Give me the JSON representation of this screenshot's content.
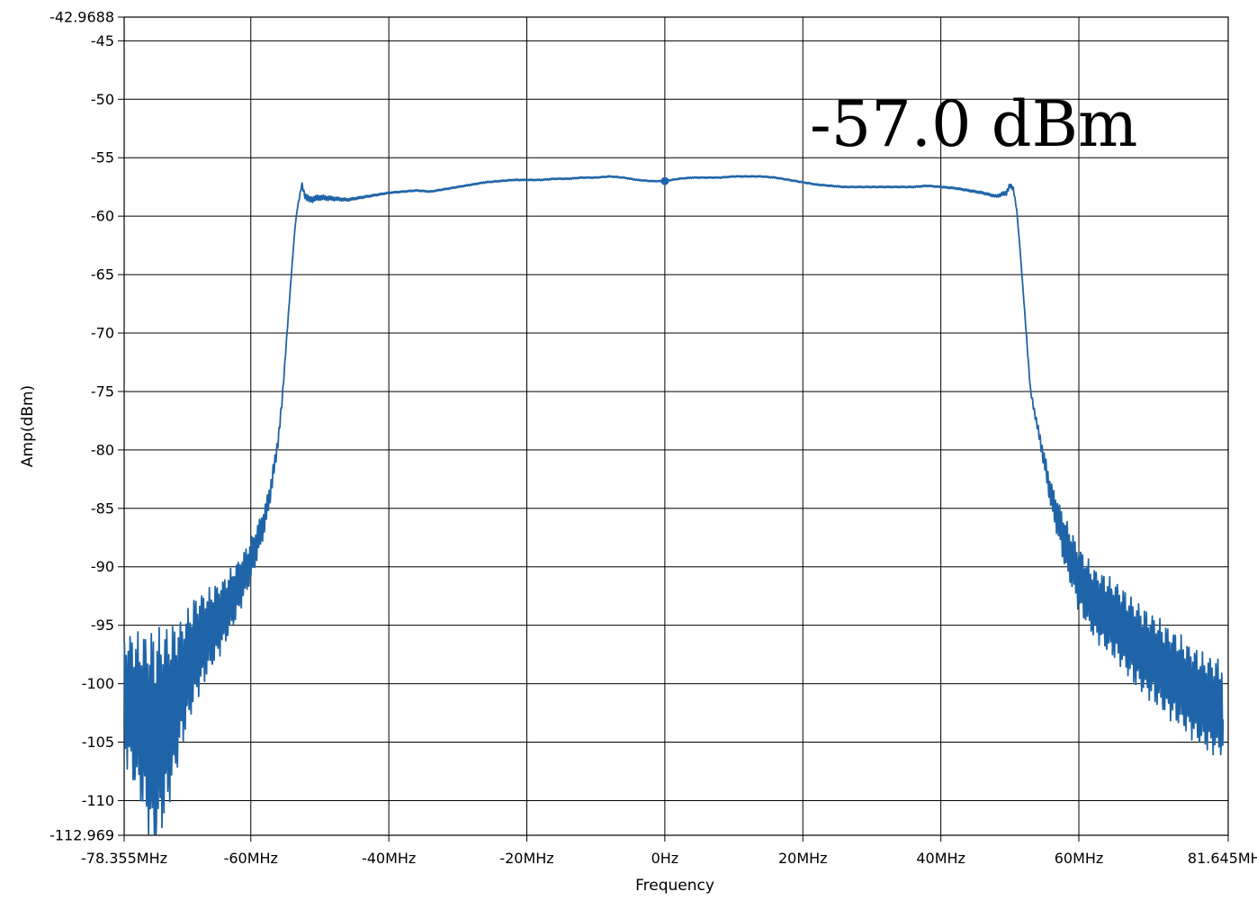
{
  "chart_data": {
    "type": "line",
    "xlabel": "Frequency",
    "ylabel": "Amp(dBm)",
    "x_unit": "MHz",
    "xlim": [
      -78.355,
      81.645
    ],
    "ylim": [
      -112.969,
      -42.9688
    ],
    "x_ticks": [
      {
        "value": -78.355,
        "label": "-78.355MHz"
      },
      {
        "value": -60,
        "label": "-60MHz"
      },
      {
        "value": -40,
        "label": "-40MHz"
      },
      {
        "value": -20,
        "label": "-20MHz"
      },
      {
        "value": 0,
        "label": "0Hz"
      },
      {
        "value": 20,
        "label": "20MHz"
      },
      {
        "value": 40,
        "label": "40MHz"
      },
      {
        "value": 60,
        "label": "60MHz"
      },
      {
        "value": 81.645,
        "label": "81.645MHz"
      }
    ],
    "y_ticks": [
      {
        "value": -42.9688,
        "label": "-42.9688"
      },
      {
        "value": -45,
        "label": "-45"
      },
      {
        "value": -50,
        "label": "-50"
      },
      {
        "value": -55,
        "label": "-55"
      },
      {
        "value": -60,
        "label": "-60"
      },
      {
        "value": -65,
        "label": "-65"
      },
      {
        "value": -70,
        "label": "-70"
      },
      {
        "value": -75,
        "label": "-75"
      },
      {
        "value": -80,
        "label": "-80"
      },
      {
        "value": -85,
        "label": "-85"
      },
      {
        "value": -90,
        "label": "-90"
      },
      {
        "value": -95,
        "label": "-95"
      },
      {
        "value": -100,
        "label": "-100"
      },
      {
        "value": -105,
        "label": "-105"
      },
      {
        "value": -110,
        "label": "-110"
      },
      {
        "value": -112.969,
        "label": "-112.969"
      }
    ],
    "grid": true,
    "series": [
      {
        "color": "#1f64a8",
        "envelope_points": [
          [
            -78.355,
            -101
          ],
          [
            -76,
            -103
          ],
          [
            -74,
            -105
          ],
          [
            -72,
            -103
          ],
          [
            -70,
            -100
          ],
          [
            -68,
            -97
          ],
          [
            -66,
            -95.5
          ],
          [
            -64,
            -94
          ],
          [
            -62,
            -92
          ],
          [
            -60,
            -89.5
          ],
          [
            -58,
            -86
          ],
          [
            -57,
            -83
          ],
          [
            -56,
            -79
          ],
          [
            -55.5,
            -76
          ],
          [
            -55,
            -72
          ],
          [
            -54.5,
            -68
          ],
          [
            -54,
            -64
          ],
          [
            -53.6,
            -61
          ],
          [
            -53.3,
            -59.5
          ],
          [
            -53,
            -58.5
          ],
          [
            -52.6,
            -57.3
          ],
          [
            -52.2,
            -58.2
          ],
          [
            -51.5,
            -58.6
          ],
          [
            -50,
            -58.4
          ],
          [
            -48,
            -58.5
          ],
          [
            -46,
            -58.6
          ],
          [
            -44,
            -58.4
          ],
          [
            -42,
            -58.2
          ],
          [
            -40,
            -58.0
          ],
          [
            -38,
            -57.9
          ],
          [
            -36,
            -57.8
          ],
          [
            -34,
            -57.9
          ],
          [
            -32,
            -57.7
          ],
          [
            -30,
            -57.5
          ],
          [
            -28,
            -57.3
          ],
          [
            -26,
            -57.1
          ],
          [
            -24,
            -57.0
          ],
          [
            -22,
            -56.9
          ],
          [
            -20,
            -56.9
          ],
          [
            -18,
            -56.9
          ],
          [
            -16,
            -56.8
          ],
          [
            -14,
            -56.8
          ],
          [
            -12,
            -56.7
          ],
          [
            -10,
            -56.7
          ],
          [
            -8,
            -56.6
          ],
          [
            -6,
            -56.7
          ],
          [
            -4,
            -56.9
          ],
          [
            -2,
            -57.0
          ],
          [
            0,
            -57.0
          ],
          [
            2,
            -56.8
          ],
          [
            4,
            -56.7
          ],
          [
            6,
            -56.7
          ],
          [
            8,
            -56.7
          ],
          [
            10,
            -56.6
          ],
          [
            12,
            -56.6
          ],
          [
            14,
            -56.6
          ],
          [
            16,
            -56.7
          ],
          [
            18,
            -56.9
          ],
          [
            20,
            -57.1
          ],
          [
            22,
            -57.3
          ],
          [
            24,
            -57.4
          ],
          [
            26,
            -57.5
          ],
          [
            28,
            -57.5
          ],
          [
            30,
            -57.5
          ],
          [
            32,
            -57.5
          ],
          [
            34,
            -57.5
          ],
          [
            36,
            -57.5
          ],
          [
            38,
            -57.4
          ],
          [
            40,
            -57.5
          ],
          [
            42,
            -57.6
          ],
          [
            44,
            -57.8
          ],
          [
            46,
            -58.0
          ],
          [
            48,
            -58.3
          ],
          [
            49.5,
            -58.0
          ],
          [
            50,
            -57.4
          ],
          [
            50.5,
            -57.6
          ],
          [
            51,
            -59.5
          ],
          [
            51.5,
            -63
          ],
          [
            52,
            -67
          ],
          [
            52.5,
            -71
          ],
          [
            53,
            -75
          ],
          [
            54,
            -78
          ],
          [
            55,
            -81
          ],
          [
            56,
            -84
          ],
          [
            57,
            -86
          ],
          [
            58,
            -88
          ],
          [
            60,
            -91
          ],
          [
            62,
            -93
          ],
          [
            64,
            -94
          ],
          [
            66,
            -95
          ],
          [
            68,
            -96.5
          ],
          [
            70,
            -97.5
          ],
          [
            72,
            -98.5
          ],
          [
            74,
            -99.5
          ],
          [
            76,
            -100.5
          ],
          [
            78,
            -101.5
          ],
          [
            80,
            -102
          ],
          [
            80.9,
            -102
          ]
        ],
        "ripple_amplitude_points": [
          [
            -78.355,
            4.5
          ],
          [
            -76,
            6
          ],
          [
            -74,
            8
          ],
          [
            -72,
            6.5
          ],
          [
            -70,
            4.5
          ],
          [
            -66,
            3
          ],
          [
            -62,
            2
          ],
          [
            -60,
            1.5
          ],
          [
            -57,
            0.7
          ],
          [
            -55,
            0.15
          ],
          [
            -53.6,
            0
          ],
          [
            -52,
            0.25
          ],
          [
            -46,
            0.1
          ],
          [
            -40,
            0.06
          ],
          [
            0,
            0.05
          ],
          [
            40,
            0.06
          ],
          [
            48,
            0.1
          ],
          [
            50,
            0.2
          ],
          [
            51.5,
            0
          ],
          [
            54,
            0.3
          ],
          [
            56,
            1.0
          ],
          [
            58,
            1.8
          ],
          [
            60,
            2.3
          ],
          [
            64,
            2.7
          ],
          [
            68,
            3.0
          ],
          [
            72,
            3.2
          ],
          [
            76,
            3.3
          ],
          [
            80.9,
            3.5
          ]
        ],
        "ripple_spacing": 0.28
      }
    ],
    "marker": {
      "x": 0,
      "y": -57.0,
      "label": "-57.0 dBm"
    }
  }
}
